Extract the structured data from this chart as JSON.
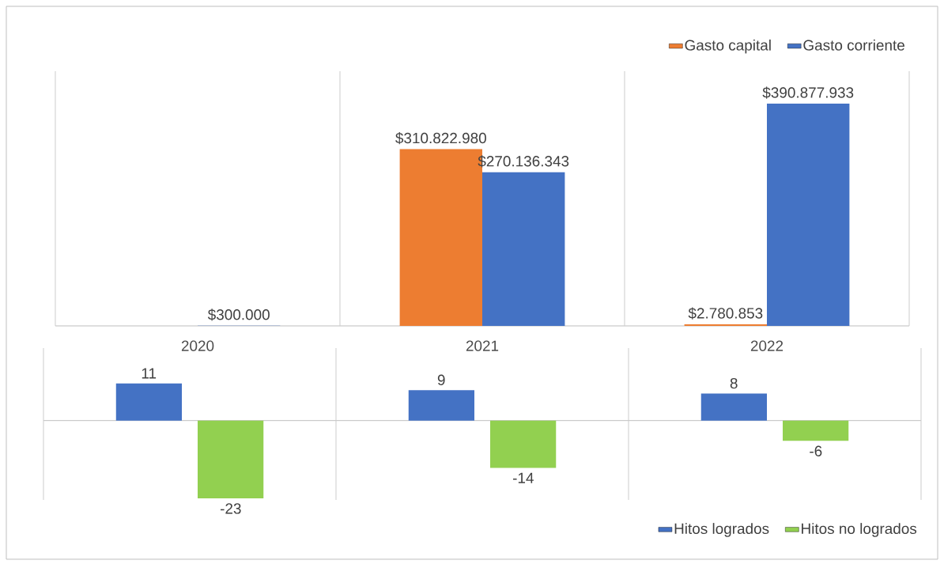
{
  "chart_data": [
    {
      "type": "bar",
      "categories": [
        "2020",
        "2021",
        "2022"
      ],
      "series": [
        {
          "name": "Gasto capital",
          "color": "#ed7d31",
          "values": [
            null,
            310822980,
            2780853
          ],
          "value_labels": [
            null,
            "$310.822.980",
            "$2.780.853"
          ]
        },
        {
          "name": "Gasto corriente",
          "color": "#4472c4",
          "values": [
            300000,
            270136343,
            390877933
          ],
          "value_labels": [
            "$300.000",
            "$270.136.343",
            "$390.877.933"
          ]
        }
      ],
      "legend": "top right",
      "grid": "x",
      "tick_labels": "x"
    },
    {
      "type": "bar",
      "categories": [
        "2020",
        "2021",
        "2022"
      ],
      "series": [
        {
          "name": "Hitos logrados",
          "color": "#4472c4",
          "values": [
            11,
            9,
            8
          ]
        },
        {
          "name": "Hitos no logrados",
          "color": "#92d050",
          "values": [
            -23,
            -14,
            -6
          ]
        }
      ],
      "data_labels": true,
      "legend": "bottom right",
      "grid": "x",
      "tick_labels": false
    }
  ]
}
